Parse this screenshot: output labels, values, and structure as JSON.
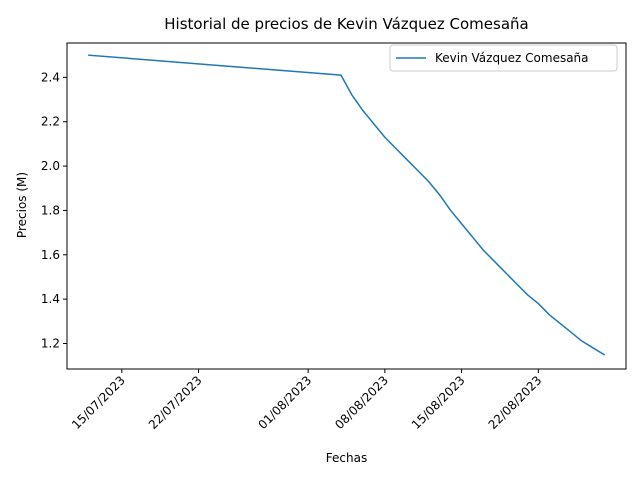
{
  "chart_data": {
    "type": "line",
    "title": "Historial de precios de Kevin Vázquez Comesaña",
    "xlabel": "Fechas",
    "ylabel": "Precios (M)",
    "xlim": [
      "2023-07-10",
      "2023-08-30"
    ],
    "ylim": [
      1.085,
      2.555
    ],
    "x_ticks": [
      {
        "date": "2023-07-15",
        "label": "15/07/2023"
      },
      {
        "date": "2023-07-22",
        "label": "22/07/2023"
      },
      {
        "date": "2023-08-01",
        "label": "01/08/2023"
      },
      {
        "date": "2023-08-08",
        "label": "08/08/2023"
      },
      {
        "date": "2023-08-15",
        "label": "15/08/2023"
      },
      {
        "date": "2023-08-22",
        "label": "22/08/2023"
      }
    ],
    "y_ticks": [
      1.2,
      1.4,
      1.6,
      1.8,
      2.0,
      2.2,
      2.4
    ],
    "y_tick_labels": [
      "1.2",
      "1.4",
      "1.6",
      "1.8",
      "2.0",
      "2.2",
      "2.4"
    ],
    "legend": {
      "placement": "top-right"
    },
    "grid": false,
    "series": [
      {
        "name": "Kevin Vázquez Comesaña",
        "color": "#1f77b4",
        "points": [
          {
            "x": "2023-07-12",
            "y": 2.5
          },
          {
            "x": "2023-08-04",
            "y": 2.41
          },
          {
            "x": "2023-08-05",
            "y": 2.32
          },
          {
            "x": "2023-08-06",
            "y": 2.25
          },
          {
            "x": "2023-08-07",
            "y": 2.19
          },
          {
            "x": "2023-08-08",
            "y": 2.13
          },
          {
            "x": "2023-08-09",
            "y": 2.08
          },
          {
            "x": "2023-08-10",
            "y": 2.03
          },
          {
            "x": "2023-08-11",
            "y": 1.98
          },
          {
            "x": "2023-08-12",
            "y": 1.93
          },
          {
            "x": "2023-08-13",
            "y": 1.87
          },
          {
            "x": "2023-08-14",
            "y": 1.8
          },
          {
            "x": "2023-08-15",
            "y": 1.74
          },
          {
            "x": "2023-08-16",
            "y": 1.68
          },
          {
            "x": "2023-08-17",
            "y": 1.62
          },
          {
            "x": "2023-08-18",
            "y": 1.57
          },
          {
            "x": "2023-08-19",
            "y": 1.52
          },
          {
            "x": "2023-08-20",
            "y": 1.47
          },
          {
            "x": "2023-08-21",
            "y": 1.42
          },
          {
            "x": "2023-08-22",
            "y": 1.38
          },
          {
            "x": "2023-08-23",
            "y": 1.33
          },
          {
            "x": "2023-08-24",
            "y": 1.29
          },
          {
            "x": "2023-08-25",
            "y": 1.25
          },
          {
            "x": "2023-08-26",
            "y": 1.21
          },
          {
            "x": "2023-08-27",
            "y": 1.18
          },
          {
            "x": "2023-08-28",
            "y": 1.15
          }
        ]
      }
    ]
  }
}
